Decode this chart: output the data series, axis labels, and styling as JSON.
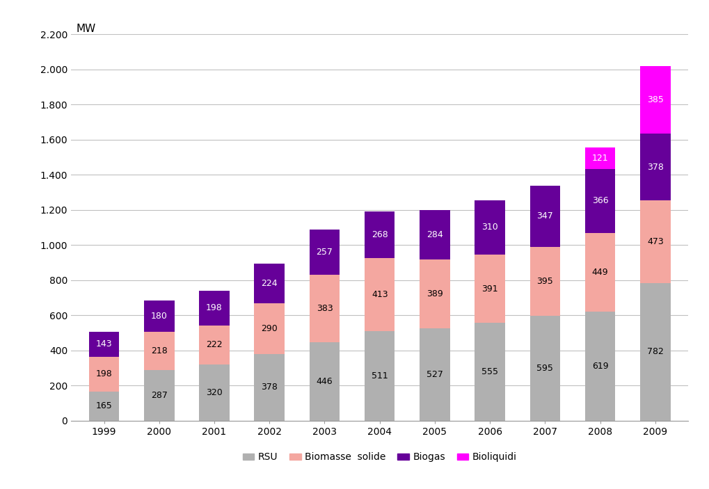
{
  "years": [
    "1999",
    "2000",
    "2001",
    "2002",
    "2003",
    "2004",
    "2005",
    "2006",
    "2007",
    "2008",
    "2009"
  ],
  "RSU": [
    165,
    287,
    320,
    378,
    446,
    511,
    527,
    555,
    595,
    619,
    782
  ],
  "Biomasse_solide": [
    198,
    218,
    222,
    290,
    383,
    413,
    389,
    391,
    395,
    449,
    473
  ],
  "Biogas": [
    143,
    180,
    198,
    224,
    257,
    268,
    284,
    310,
    347,
    366,
    378
  ],
  "Bioliquidi": [
    0,
    0,
    0,
    0,
    0,
    0,
    0,
    0,
    0,
    121,
    385
  ],
  "color_RSU": "#b0b0b0",
  "color_Biomasse": "#f4a7a0",
  "color_Biogas": "#660099",
  "color_Bioliquidi": "#ff00ff",
  "ylim": [
    0,
    2200
  ],
  "yticks": [
    0,
    200,
    400,
    600,
    800,
    1000,
    1200,
    1400,
    1600,
    1800,
    2000,
    2200
  ],
  "ytick_labels": [
    "0",
    "200",
    "400",
    "600",
    "800",
    "1.000",
    "1.200",
    "1.400",
    "1.600",
    "1.800",
    "2.000",
    "2.200"
  ],
  "legend_labels": [
    "RSU",
    "Biomasse  solide",
    "Biogas",
    "Bioliquidi"
  ],
  "bar_width": 0.55,
  "label_fontsize": 9,
  "axis_fontsize": 10,
  "mw_label_fontsize": 11,
  "background_color": "#ffffff",
  "grid_color": "#c0c0c0",
  "grid_linewidth": 0.8
}
